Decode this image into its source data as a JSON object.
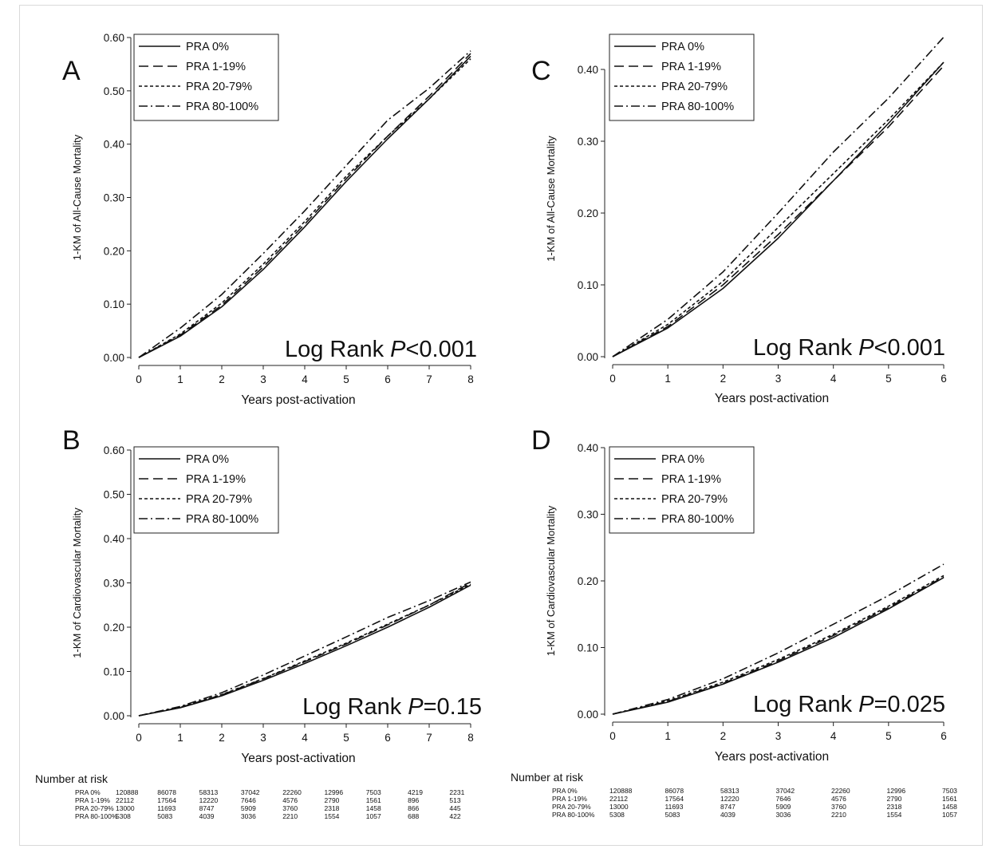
{
  "legend_items": [
    "PRA 0%",
    "PRA 1-19%",
    "PRA 20-79%",
    "PRA 80-100%"
  ],
  "chart_data": [
    {
      "panel": "A",
      "type": "line",
      "ylabel": "1-KM of All-Cause Mortality",
      "xlabel": "Years post-activation",
      "xlim": [
        0,
        8
      ],
      "ylim": [
        0,
        0.6
      ],
      "xticks": [
        "0",
        "1",
        "2",
        "3",
        "4",
        "5",
        "6",
        "7",
        "8"
      ],
      "yticks": [
        "0.00",
        "0.10",
        "0.20",
        "0.30",
        "0.40",
        "0.50",
        "0.60"
      ],
      "legend": "top-left",
      "annotation": {
        "prefix": "Log Rank ",
        "italic": "P",
        "suffix": "<0.001"
      },
      "series": [
        {
          "name": "PRA 0%",
          "x": [
            0,
            1,
            2,
            3,
            4,
            5,
            6,
            7,
            8
          ],
          "y": [
            0,
            0.04,
            0.095,
            0.165,
            0.245,
            0.33,
            0.41,
            0.485,
            0.565
          ]
        },
        {
          "name": "PRA 1-19%",
          "x": [
            0,
            1,
            2,
            3,
            4,
            5,
            6,
            7,
            8
          ],
          "y": [
            0,
            0.042,
            0.098,
            0.17,
            0.25,
            0.335,
            0.415,
            0.49,
            0.57
          ]
        },
        {
          "name": "PRA 20-79%",
          "x": [
            0,
            1,
            2,
            3,
            4,
            5,
            6,
            7,
            8
          ],
          "y": [
            0,
            0.044,
            0.102,
            0.175,
            0.255,
            0.34,
            0.415,
            0.485,
            0.56
          ]
        },
        {
          "name": "PRA 80-100%",
          "x": [
            0,
            1,
            2,
            3,
            4,
            5,
            6,
            7,
            8
          ],
          "y": [
            0,
            0.055,
            0.118,
            0.195,
            0.275,
            0.36,
            0.445,
            0.505,
            0.575
          ]
        }
      ]
    },
    {
      "panel": "C",
      "type": "line",
      "ylabel": "1-KM of All-Cause Mortality",
      "xlabel": "Years post-activation",
      "xlim": [
        0,
        6
      ],
      "ylim": [
        0,
        0.44
      ],
      "xticks": [
        "0",
        "1",
        "2",
        "3",
        "4",
        "5",
        "6"
      ],
      "yticks": [
        "0.00",
        "0.10",
        "0.20",
        "0.30",
        "0.40"
      ],
      "legend": "top-left",
      "annotation": {
        "prefix": "Log Rank ",
        "italic": "P",
        "suffix": "<0.001"
      },
      "series": [
        {
          "name": "PRA 0%",
          "x": [
            0,
            1,
            2,
            3,
            4,
            5,
            6
          ],
          "y": [
            0,
            0.04,
            0.095,
            0.165,
            0.245,
            0.325,
            0.41
          ]
        },
        {
          "name": "PRA 1-19%",
          "x": [
            0,
            1,
            2,
            3,
            4,
            5,
            6
          ],
          "y": [
            0,
            0.042,
            0.1,
            0.17,
            0.245,
            0.32,
            0.405
          ]
        },
        {
          "name": "PRA 20-79%",
          "x": [
            0,
            1,
            2,
            3,
            4,
            5,
            6
          ],
          "y": [
            0,
            0.045,
            0.105,
            0.18,
            0.255,
            0.33,
            0.41
          ]
        },
        {
          "name": "PRA 80-100%",
          "x": [
            0,
            1,
            2,
            3,
            4,
            5,
            6
          ],
          "y": [
            0,
            0.052,
            0.118,
            0.2,
            0.285,
            0.36,
            0.445
          ]
        }
      ]
    },
    {
      "panel": "B",
      "type": "line",
      "ylabel": "1-KM of Cardiovascular Mortality",
      "xlabel": "Years post-activation",
      "xlim": [
        0,
        8
      ],
      "ylim": [
        0,
        0.6
      ],
      "xticks": [
        "0",
        "1",
        "2",
        "3",
        "4",
        "5",
        "6",
        "7",
        "8"
      ],
      "yticks": [
        "0.00",
        "0.10",
        "0.20",
        "0.30",
        "0.40",
        "0.50",
        "0.60"
      ],
      "legend": "top-left",
      "annotation": {
        "prefix": "Log Rank ",
        "italic": "P",
        "suffix": "=0.15"
      },
      "series": [
        {
          "name": "PRA 0%",
          "x": [
            0,
            1,
            2,
            3,
            4,
            5,
            6,
            7,
            8
          ],
          "y": [
            0,
            0.018,
            0.045,
            0.08,
            0.118,
            0.158,
            0.2,
            0.245,
            0.295
          ]
        },
        {
          "name": "PRA 1-19%",
          "x": [
            0,
            1,
            2,
            3,
            4,
            5,
            6,
            7,
            8
          ],
          "y": [
            0,
            0.019,
            0.047,
            0.083,
            0.122,
            0.162,
            0.205,
            0.25,
            0.3
          ]
        },
        {
          "name": "PRA 20-79%",
          "x": [
            0,
            1,
            2,
            3,
            4,
            5,
            6,
            7,
            8
          ],
          "y": [
            0,
            0.02,
            0.048,
            0.084,
            0.124,
            0.164,
            0.207,
            0.25,
            0.297
          ]
        },
        {
          "name": "PRA 80-100%",
          "x": [
            0,
            1,
            2,
            3,
            4,
            5,
            6,
            7,
            8
          ],
          "y": [
            0,
            0.021,
            0.052,
            0.092,
            0.135,
            0.178,
            0.222,
            0.26,
            0.302
          ]
        }
      ]
    },
    {
      "panel": "D",
      "type": "line",
      "ylabel": "1-KM of Cardiovascular Mortality",
      "xlabel": "Years post-activation",
      "xlim": [
        0,
        6
      ],
      "ylim": [
        0,
        0.4
      ],
      "xticks": [
        "0",
        "1",
        "2",
        "3",
        "4",
        "5",
        "6"
      ],
      "yticks": [
        "0.00",
        "0.10",
        "0.20",
        "0.30",
        "0.40"
      ],
      "legend": "top-left",
      "annotation": {
        "prefix": "Log Rank ",
        "italic": "P",
        "suffix": "=0.025"
      },
      "series": [
        {
          "name": "PRA 0%",
          "x": [
            0,
            1,
            2,
            3,
            4,
            5,
            6
          ],
          "y": [
            0,
            0.018,
            0.045,
            0.078,
            0.115,
            0.158,
            0.205
          ]
        },
        {
          "name": "PRA 1-19%",
          "x": [
            0,
            1,
            2,
            3,
            4,
            5,
            6
          ],
          "y": [
            0,
            0.019,
            0.046,
            0.08,
            0.118,
            0.16,
            0.206
          ]
        },
        {
          "name": "PRA 20-79%",
          "x": [
            0,
            1,
            2,
            3,
            4,
            5,
            6
          ],
          "y": [
            0,
            0.02,
            0.048,
            0.082,
            0.12,
            0.162,
            0.208
          ]
        },
        {
          "name": "PRA 80-100%",
          "x": [
            0,
            1,
            2,
            3,
            4,
            5,
            6
          ],
          "y": [
            0,
            0.022,
            0.053,
            0.092,
            0.135,
            0.178,
            0.225
          ]
        }
      ]
    }
  ],
  "risk_tables": [
    {
      "heading": "Number at risk",
      "rows": [
        {
          "label": "PRA 0%",
          "values": [
            "120888",
            "86078",
            "58313",
            "37042",
            "22260",
            "12996",
            "7503",
            "4219",
            "2231"
          ]
        },
        {
          "label": "PRA 1-19%",
          "values": [
            "22112",
            "17564",
            "12220",
            "7646",
            "4576",
            "2790",
            "1561",
            "896",
            "513"
          ]
        },
        {
          "label": "PRA 20-79%",
          "values": [
            "13000",
            "11693",
            "8747",
            "5909",
            "3760",
            "2318",
            "1458",
            "866",
            "445"
          ]
        },
        {
          "label": "PRA 80-100%",
          "values": [
            "5308",
            "5083",
            "4039",
            "3036",
            "2210",
            "1554",
            "1057",
            "688",
            "422"
          ]
        }
      ]
    },
    {
      "heading": "Number at risk",
      "rows": [
        {
          "label": "PRA 0%",
          "values": [
            "120888",
            "86078",
            "58313",
            "37042",
            "22260",
            "12996",
            "7503"
          ]
        },
        {
          "label": "PRA 1-19%",
          "values": [
            "22112",
            "17564",
            "12220",
            "7646",
            "4576",
            "2790",
            "1561"
          ]
        },
        {
          "label": "PRA 20-79%",
          "values": [
            "13000",
            "11693",
            "8747",
            "5909",
            "3760",
            "2318",
            "1458"
          ]
        },
        {
          "label": "PRA 80-100%",
          "values": [
            "5308",
            "5083",
            "4039",
            "3036",
            "2210",
            "1554",
            "1057"
          ]
        }
      ]
    }
  ]
}
